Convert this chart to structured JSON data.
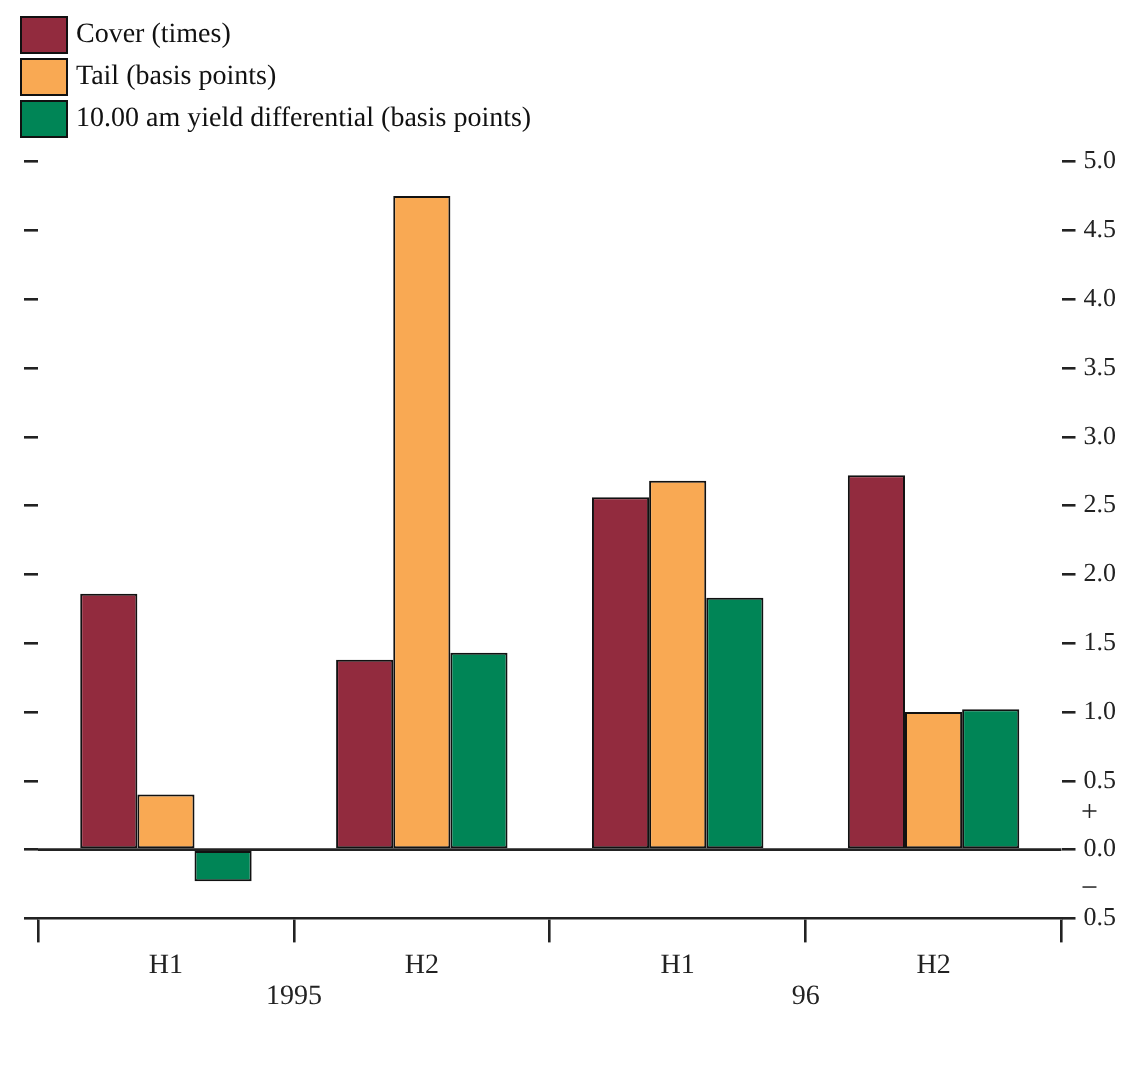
{
  "chart_data": {
    "type": "bar",
    "categories": [
      "H1",
      "H2",
      "H1",
      "H2"
    ],
    "series": [
      {
        "name": "Cover (times)",
        "color": "#922b3e",
        "values": [
          1.86,
          1.38,
          2.56,
          2.72
        ]
      },
      {
        "name": "Tail (basis points)",
        "color": "#f9a953",
        "values": [
          0.4,
          4.75,
          2.68,
          1.0
        ]
      },
      {
        "name": "10.00 am yield differential (basis points)",
        "color": "#008556",
        "values": [
          -0.23,
          1.43,
          1.83,
          1.02
        ]
      }
    ],
    "ylim": [
      -0.5,
      5.0
    ],
    "yticks": [
      {
        "value": -0.5,
        "label": "0.5"
      },
      {
        "value": 0,
        "label": "0.0"
      },
      {
        "value": 0.5,
        "label": "0.5"
      },
      {
        "value": 1,
        "label": "1.0"
      },
      {
        "value": 1.5,
        "label": "1.5"
      },
      {
        "value": 2,
        "label": "2.0"
      },
      {
        "value": 2.5,
        "label": "2.5"
      },
      {
        "value": 3,
        "label": "3.0"
      },
      {
        "value": 3.5,
        "label": "3.5"
      },
      {
        "value": 4,
        "label": "4.0"
      },
      {
        "value": 4.5,
        "label": "4.5"
      },
      {
        "value": 5,
        "label": "5.0"
      }
    ],
    "annotations": [
      "+",
      "−",
      "1995",
      "96"
    ],
    "legend": "top left"
  }
}
